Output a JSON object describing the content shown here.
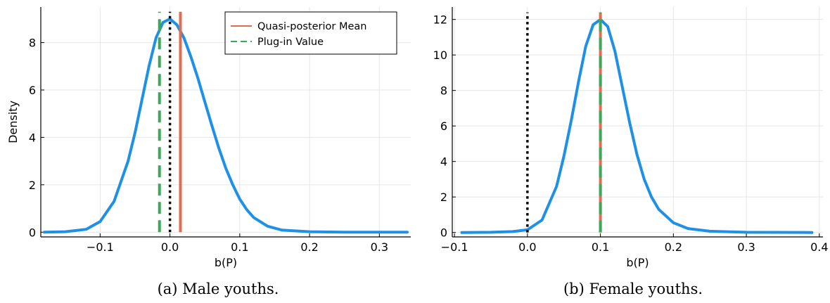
{
  "colors": {
    "density": "#1e90e6",
    "mean": "#e06d4f",
    "plugin": "#3ea85a",
    "zero": "#000000",
    "grid": "#e6e6e6"
  },
  "chart_data": [
    {
      "type": "line",
      "caption": "(a) Male youths.",
      "xlabel": "b(P)",
      "ylabel": "Density",
      "xlim": [
        -0.185,
        0.345
      ],
      "ylim": [
        -0.2,
        9.5
      ],
      "xticks": [
        -0.1,
        0.0,
        0.1,
        0.2,
        0.3
      ],
      "xtick_labels": [
        "−0.1",
        "0.0",
        "0.1",
        "0.2",
        "0.3"
      ],
      "yticks": [
        0,
        2,
        4,
        6,
        8
      ],
      "ytick_labels": [
        "0",
        "2",
        "4",
        "6",
        "8"
      ],
      "grid": true,
      "legend": {
        "placement": "top-right",
        "entries": [
          "Quasi-posterior Mean",
          "Plug-in Value"
        ]
      },
      "series": [
        {
          "name": "density",
          "x": [
            -0.18,
            -0.15,
            -0.12,
            -0.1,
            -0.08,
            -0.06,
            -0.05,
            -0.04,
            -0.03,
            -0.02,
            -0.01,
            0.0,
            0.01,
            0.02,
            0.03,
            0.04,
            0.05,
            0.06,
            0.07,
            0.08,
            0.09,
            0.1,
            0.11,
            0.12,
            0.14,
            0.16,
            0.2,
            0.25,
            0.3,
            0.34
          ],
          "y": [
            0.0,
            0.02,
            0.12,
            0.45,
            1.3,
            3.0,
            4.2,
            5.6,
            7.0,
            8.2,
            8.85,
            9.0,
            8.75,
            8.2,
            7.4,
            6.5,
            5.5,
            4.5,
            3.55,
            2.7,
            2.0,
            1.4,
            0.95,
            0.62,
            0.25,
            0.09,
            0.02,
            0.0,
            0.0,
            0.0
          ]
        }
      ],
      "vlines": [
        {
          "name": "Quasi-posterior Mean",
          "x": 0.015,
          "y_top": 9.3
        },
        {
          "name": "Plug-in Value",
          "x": -0.015,
          "y_top": 9.3
        },
        {
          "name": "zero",
          "x": 0.0,
          "y_top": 9.3
        }
      ]
    },
    {
      "type": "line",
      "caption": "(b) Female youths.",
      "xlabel": "b(P)",
      "ylabel": "",
      "xlim": [
        -0.103,
        0.405
      ],
      "ylim": [
        -0.25,
        12.7
      ],
      "xticks": [
        -0.1,
        0.0,
        0.1,
        0.2,
        0.3,
        0.4
      ],
      "xtick_labels": [
        "−0.1",
        "0.0",
        "0.1",
        "0.2",
        "0.3",
        "0.4"
      ],
      "yticks": [
        0,
        2,
        4,
        6,
        8,
        10,
        12
      ],
      "ytick_labels": [
        "0",
        "2",
        "4",
        "6",
        "8",
        "10",
        "12"
      ],
      "grid": true,
      "legend": null,
      "series": [
        {
          "name": "density",
          "x": [
            -0.09,
            -0.05,
            -0.02,
            0.0,
            0.02,
            0.04,
            0.05,
            0.06,
            0.07,
            0.08,
            0.09,
            0.1,
            0.11,
            0.12,
            0.13,
            0.14,
            0.15,
            0.16,
            0.17,
            0.18,
            0.2,
            0.22,
            0.25,
            0.3,
            0.39
          ],
          "y": [
            0.0,
            0.01,
            0.05,
            0.15,
            0.7,
            2.6,
            4.3,
            6.3,
            8.5,
            10.5,
            11.7,
            12.0,
            11.6,
            10.2,
            8.2,
            6.2,
            4.4,
            3.0,
            2.0,
            1.3,
            0.55,
            0.22,
            0.07,
            0.01,
            0.0
          ]
        }
      ],
      "vlines": [
        {
          "name": "Quasi-posterior Mean",
          "x": 0.1,
          "y_top": 12.4
        },
        {
          "name": "Plug-in Value",
          "x": 0.1,
          "y_top": 12.4
        },
        {
          "name": "zero",
          "x": 0.0,
          "y_top": 12.4
        }
      ]
    }
  ]
}
